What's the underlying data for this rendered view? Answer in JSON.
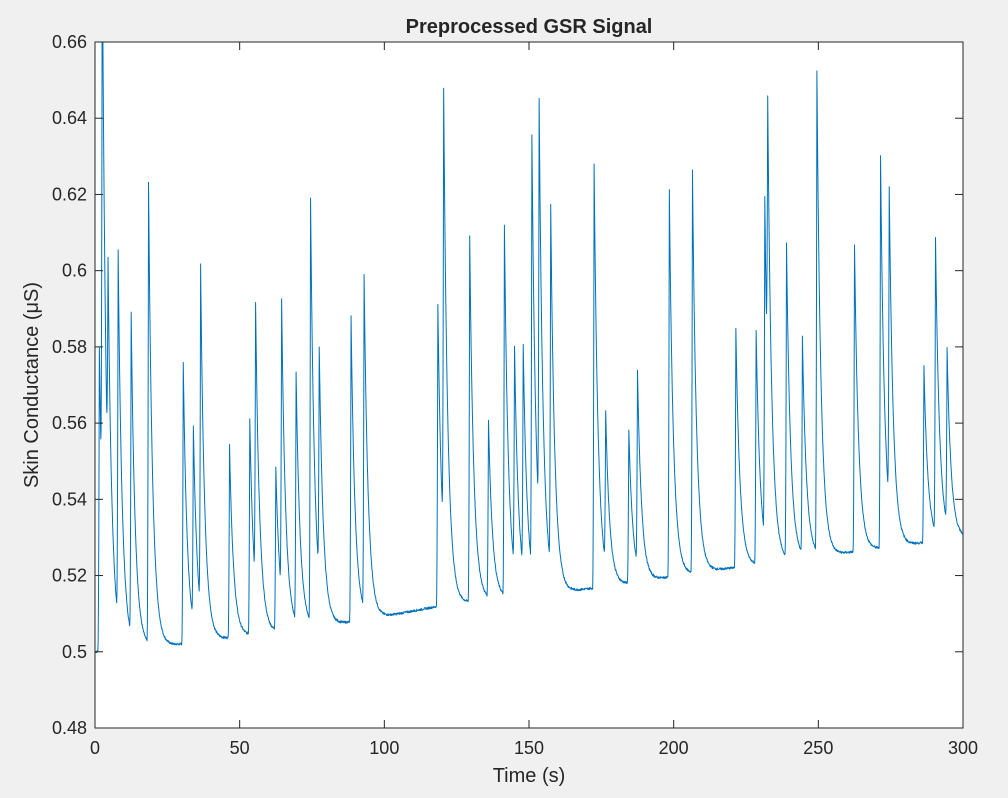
{
  "chart_data": {
    "type": "line",
    "title": "Preprocessed GSR Signal",
    "xlabel": "Time (s)",
    "ylabel": "Skin Conductance (μS)",
    "xlim": [
      0,
      300
    ],
    "ylim": [
      0.48,
      0.66
    ],
    "xticks": [
      0,
      50,
      100,
      150,
      200,
      250,
      300
    ],
    "xtick_labels": [
      "0",
      "50",
      "100",
      "150",
      "200",
      "250",
      "300"
    ],
    "yticks": [
      0.48,
      0.5,
      0.52,
      0.54,
      0.56,
      0.58,
      0.6,
      0.62,
      0.64,
      0.66
    ],
    "ytick_labels": [
      "0.48",
      "0.5",
      "0.52",
      "0.54",
      "0.56",
      "0.58",
      "0.6",
      "0.62",
      "0.64",
      "0.66"
    ],
    "grid": false,
    "colors": {
      "line": "#0072bd",
      "axes": "#262626",
      "background": "#f0f0f0",
      "plot_area": "#ffffff"
    },
    "series": [
      {
        "baseline": [
          [
            0,
            0.5
          ],
          [
            30,
            0.502
          ],
          [
            60,
            0.505
          ],
          [
            90,
            0.508
          ],
          [
            105,
            0.51
          ],
          [
            119,
            0.512
          ],
          [
            140,
            0.514
          ],
          [
            165,
            0.516
          ],
          [
            185,
            0.518
          ],
          [
            210,
            0.521
          ],
          [
            230,
            0.523
          ],
          [
            250,
            0.525
          ],
          [
            270,
            0.527
          ],
          [
            290,
            0.529
          ],
          [
            300,
            0.53
          ]
        ],
        "peaks": [
          [
            1.5,
            0.58
          ],
          [
            2.5,
            0.65
          ],
          [
            4.5,
            0.558
          ],
          [
            8,
            0.597
          ],
          [
            12.5,
            0.585
          ],
          [
            18.5,
            0.622
          ],
          [
            30.5,
            0.576
          ],
          [
            34,
            0.553
          ],
          [
            36.5,
            0.592
          ],
          [
            46.5,
            0.554
          ],
          [
            53.5,
            0.561
          ],
          [
            55.5,
            0.578
          ],
          [
            62.5,
            0.548
          ],
          [
            64.5,
            0.582
          ],
          [
            69.5,
            0.571
          ],
          [
            74.5,
            0.617
          ],
          [
            77.5,
            0.567
          ],
          [
            88.5,
            0.588
          ],
          [
            93,
            0.596
          ],
          [
            118.5,
            0.591
          ],
          [
            120.5,
            0.629
          ],
          [
            129.5,
            0.609
          ],
          [
            136,
            0.56
          ],
          [
            141.5,
            0.611
          ],
          [
            145,
            0.572
          ],
          [
            148,
            0.573
          ],
          [
            151,
            0.628
          ],
          [
            153.5,
            0.625
          ],
          [
            157.5,
            0.61
          ],
          [
            172.5,
            0.628
          ],
          [
            176.5,
            0.557
          ],
          [
            184.5,
            0.558
          ],
          [
            187.5,
            0.569
          ],
          [
            198.5,
            0.621
          ],
          [
            206.5,
            0.626
          ],
          [
            221.5,
            0.585
          ],
          [
            228.5,
            0.584
          ],
          [
            231.5,
            0.612
          ],
          [
            232.5,
            0.599
          ],
          [
            239,
            0.606
          ],
          [
            244.5,
            0.581
          ],
          [
            249.5,
            0.651
          ],
          [
            262.5,
            0.607
          ],
          [
            271.5,
            0.63
          ],
          [
            274.5,
            0.61
          ],
          [
            286.5,
            0.575
          ],
          [
            290.5,
            0.606
          ],
          [
            294.5,
            0.575
          ]
        ]
      }
    ]
  }
}
